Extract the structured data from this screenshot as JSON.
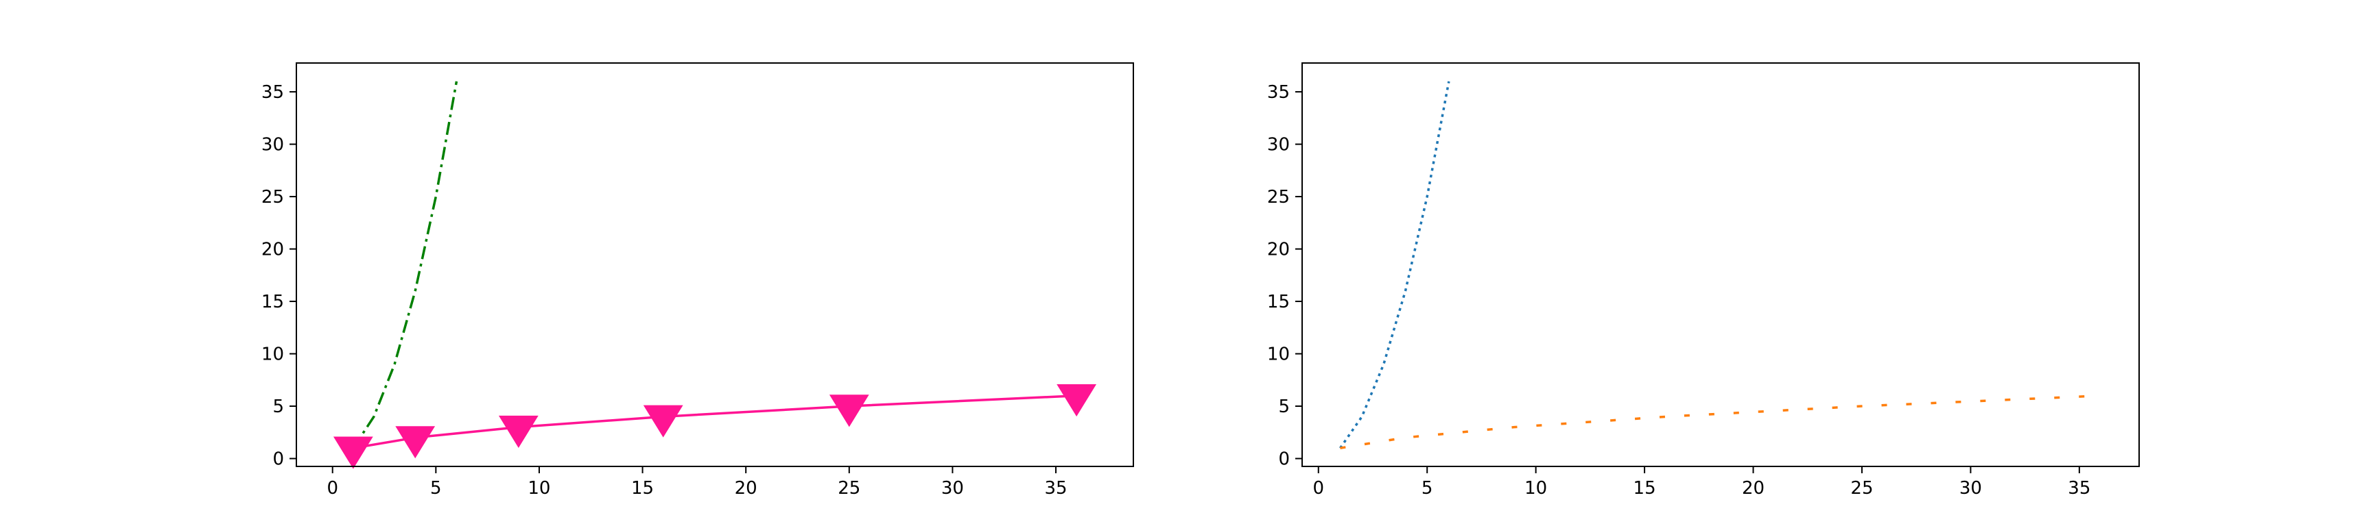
{
  "figure": {
    "background": "#ffffff"
  },
  "chart_data": [
    {
      "type": "line",
      "title": "",
      "xlabel": "",
      "ylabel": "",
      "xlim": [
        -1.75,
        38.75
      ],
      "ylim": [
        -0.75,
        37.75
      ],
      "xticks": [
        0,
        5,
        10,
        15,
        20,
        25,
        30,
        35
      ],
      "yticks": [
        0,
        5,
        10,
        15,
        20,
        25,
        30,
        35
      ],
      "grid": false,
      "legend": "none",
      "series": [
        {
          "x": [
            1,
            2,
            3,
            4,
            5,
            6
          ],
          "y": [
            1,
            4,
            9,
            16,
            25,
            36
          ],
          "color": "#008000",
          "linestyle": "dashdot",
          "marker": "none"
        },
        {
          "x": [
            1,
            4,
            9,
            16,
            25,
            36
          ],
          "y": [
            1,
            2,
            3,
            4,
            5,
            6
          ],
          "color": "#ff1493",
          "linestyle": "solid",
          "marker": "triangle-down"
        }
      ]
    },
    {
      "type": "line",
      "title": "",
      "xlabel": "",
      "ylabel": "",
      "xlim": [
        -0.75,
        37.75
      ],
      "ylim": [
        -0.75,
        37.75
      ],
      "xticks": [
        0,
        5,
        10,
        15,
        20,
        25,
        30,
        35
      ],
      "yticks": [
        0,
        5,
        10,
        15,
        20,
        25,
        30,
        35
      ],
      "grid": false,
      "legend": "none",
      "series": [
        {
          "x": [
            1,
            2,
            3,
            4,
            5,
            6
          ],
          "y": [
            1,
            4,
            9,
            16,
            25,
            36
          ],
          "color": "#1f77b4",
          "linestyle": "dotted",
          "marker": "none"
        },
        {
          "x": [
            1,
            4,
            9,
            16,
            25,
            36
          ],
          "y": [
            1,
            2,
            3,
            4,
            5,
            6
          ],
          "color": "#ff7f0e",
          "linestyle": "loosely-dashed",
          "marker": "none"
        }
      ]
    }
  ]
}
